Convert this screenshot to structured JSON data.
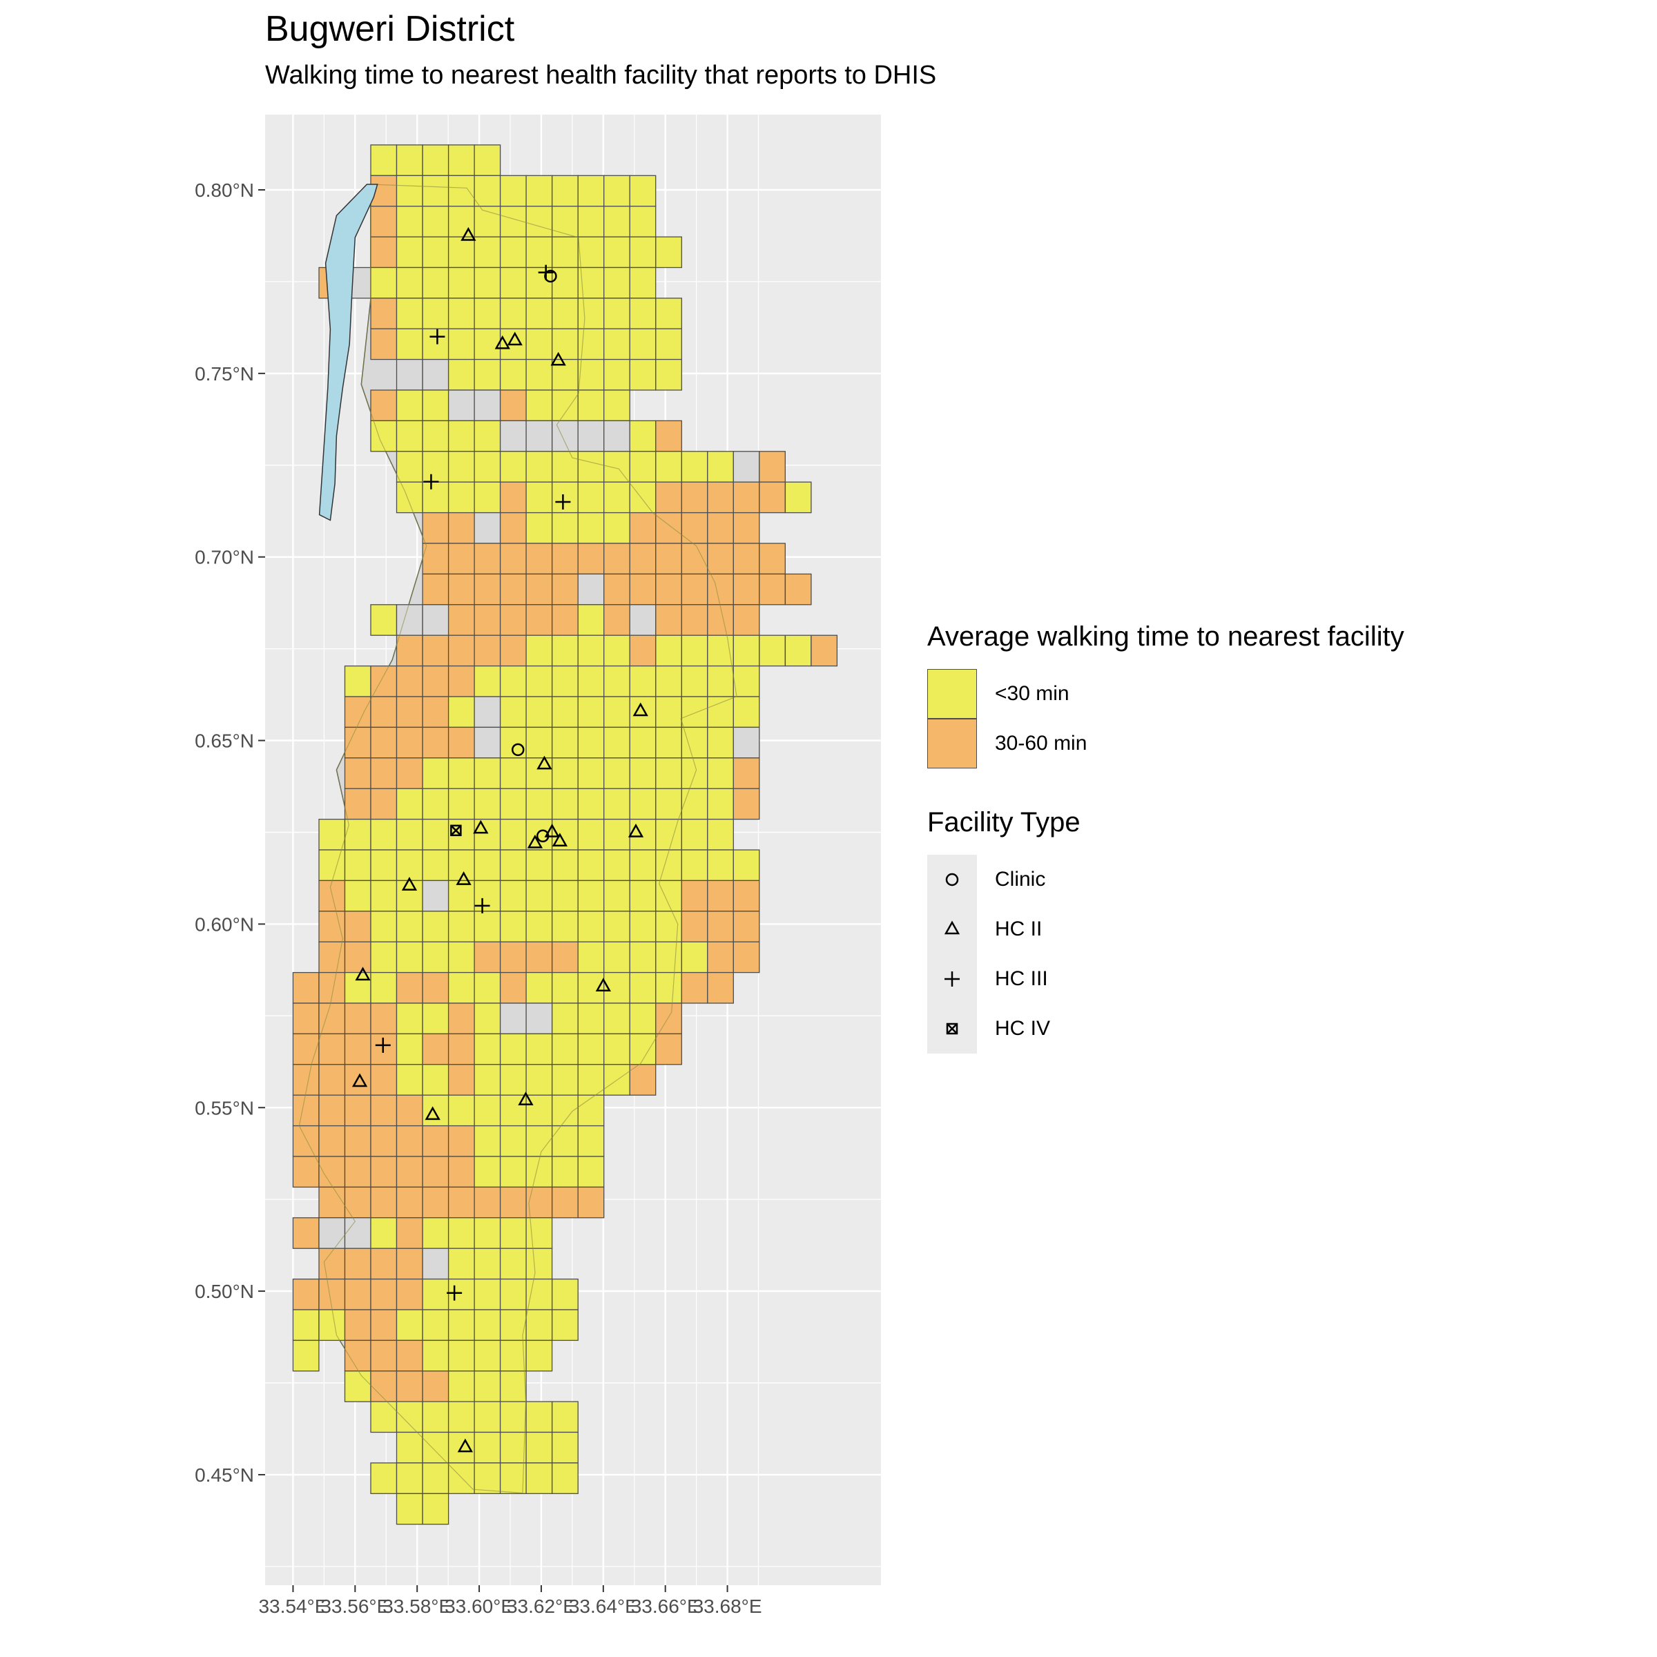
{
  "chart_data": {
    "type": "map",
    "title": "Bugweri District",
    "subtitle": "Walking time to nearest health facility that reports to DHIS",
    "xlim": [
      33.531,
      33.7295
    ],
    "ylim": [
      0.4199,
      0.8205
    ],
    "x_ticks": [
      {
        "value": 33.54,
        "label": "33.54°E"
      },
      {
        "value": 33.56,
        "label": "33.56°E"
      },
      {
        "value": 33.58,
        "label": "33.58°E"
      },
      {
        "value": 33.6,
        "label": "33.60°E"
      },
      {
        "value": 33.62,
        "label": "33.62°E"
      },
      {
        "value": 33.64,
        "label": "33.64°E"
      },
      {
        "value": 33.66,
        "label": "33.66°E"
      },
      {
        "value": 33.68,
        "label": "33.68°E"
      }
    ],
    "y_ticks": [
      {
        "value": 0.45,
        "label": "0.45°N"
      },
      {
        "value": 0.5,
        "label": "0.50°N"
      },
      {
        "value": 0.55,
        "label": "0.55°N"
      },
      {
        "value": 0.6,
        "label": "0.60°N"
      },
      {
        "value": 0.65,
        "label": "0.65°N"
      },
      {
        "value": 0.7,
        "label": "0.70°N"
      },
      {
        "value": 0.75,
        "label": "0.75°N"
      },
      {
        "value": 0.8,
        "label": "0.80°N"
      }
    ],
    "grid": true,
    "colors": {
      "panel": "#ebebeb",
      "grid": "#ffffff",
      "no_data": "#d9d9d9",
      "water": "#add8e6",
      "lt30": "#eded5a",
      "30to60": "#f5b86a",
      "cell_border": "#4d4d4d"
    },
    "grid_cells": {
      "origin_lon": 33.54,
      "origin_lat": 0.4365,
      "cell_size_deg": 0.00835,
      "value_codes": {
        "1": "<30 min",
        "2": "30-60 min",
        "0": "no data"
      },
      "rows_top_to_bottom": [
        {
          "col_start": 3,
          "codes": "11111"
        },
        {
          "col_start": 3,
          "codes": "21111111111"
        },
        {
          "col_start": 3,
          "codes": "21111111111"
        },
        {
          "col_start": 3,
          "codes": "211111111111"
        },
        {
          "col_start": 1,
          "codes": "2011111111111"
        },
        {
          "col_start": 3,
          "codes": "211111111111"
        },
        {
          "col_start": 3,
          "codes": "211111111111"
        },
        {
          "col_start": 4,
          "codes": "00111111111"
        },
        {
          "col_start": 3,
          "codes": "2110021111"
        },
        {
          "col_start": 3,
          "codes": "111110000012"
        },
        {
          "col_start": 4,
          "codes": "111111111111102"
        },
        {
          "col_start": 4,
          "codes": "1111211111222221"
        },
        {
          "col_start": 5,
          "codes": "2202111122222"
        },
        {
          "col_start": 5,
          "codes": "22222222222222"
        },
        {
          "col_start": 5,
          "codes": "222222022222222"
        },
        {
          "col_start": 3,
          "codes": "100222221202222"
        },
        {
          "col_start": 4,
          "codes": "22222111121111112"
        },
        {
          "col_start": 2,
          "codes": "1222211111111111"
        },
        {
          "col_start": 2,
          "codes": "2222101111111111"
        },
        {
          "col_start": 2,
          "codes": "2222201111111110"
        },
        {
          "col_start": 2,
          "codes": "2221111111111112"
        },
        {
          "col_start": 2,
          "codes": "2211111111111112"
        },
        {
          "col_start": 1,
          "codes": "1111111111111111"
        },
        {
          "col_start": 1,
          "codes": "11111111111111111"
        },
        {
          "col_start": 1,
          "codes": "21110111111111222"
        },
        {
          "col_start": 1,
          "codes": "22111111111111222"
        },
        {
          "col_start": 1,
          "codes": "22111122221111122"
        },
        {
          "col_start": 0,
          "codes": "22112211211111122"
        },
        {
          "col_start": 0,
          "codes": "222211210011112"
        },
        {
          "col_start": 0,
          "codes": "222212211111112"
        },
        {
          "col_start": 0,
          "codes": "22221121111112"
        },
        {
          "col_start": 0,
          "codes": "222221111111"
        },
        {
          "col_start": 0,
          "codes": "222222211111"
        },
        {
          "col_start": 0,
          "codes": "222222211111"
        },
        {
          "col_start": 1,
          "codes": "22222222222"
        },
        {
          "col_start": 0,
          "codes": "2001211111"
        },
        {
          "col_start": 1,
          "codes": "222201111"
        },
        {
          "col_start": 0,
          "codes": "22222111111"
        },
        {
          "col_start": 0,
          "codes": "11221111111"
        },
        {
          "col_start": 0,
          "codes": "1 22211111"
        },
        {
          "col_start": 2,
          "codes": "1222111"
        },
        {
          "col_start": 3,
          "codes": "11111111"
        },
        {
          "col_start": 4,
          "codes": "1111111"
        },
        {
          "col_start": 3,
          "codes": "11111111"
        },
        {
          "col_start": 4,
          "codes": "11"
        }
      ]
    },
    "boundary": [
      [
        33.565,
        0.8015
      ],
      [
        33.596,
        0.8005
      ],
      [
        33.601,
        0.7945
      ],
      [
        33.632,
        0.787
      ],
      [
        33.634,
        0.765
      ],
      [
        33.632,
        0.7445
      ],
      [
        33.625,
        0.736
      ],
      [
        33.63,
        0.727
      ],
      [
        33.645,
        0.724
      ],
      [
        33.656,
        0.712
      ],
      [
        33.67,
        0.703
      ],
      [
        33.676,
        0.693
      ],
      [
        33.68,
        0.678
      ],
      [
        33.683,
        0.662
      ],
      [
        33.665,
        0.656
      ],
      [
        33.67,
        0.642
      ],
      [
        33.664,
        0.628
      ],
      [
        33.658,
        0.611
      ],
      [
        33.664,
        0.6
      ],
      [
        33.662,
        0.576
      ],
      [
        33.652,
        0.562
      ],
      [
        33.63,
        0.549
      ],
      [
        33.62,
        0.538
      ],
      [
        33.616,
        0.524
      ],
      [
        33.618,
        0.505
      ],
      [
        33.614,
        0.488
      ],
      [
        33.615,
        0.47
      ],
      [
        33.614,
        0.445
      ],
      [
        33.598,
        0.446
      ],
      [
        33.576,
        0.465
      ],
      [
        33.562,
        0.477
      ],
      [
        33.554,
        0.488
      ],
      [
        33.55,
        0.508
      ],
      [
        33.56,
        0.519
      ],
      [
        33.55,
        0.532
      ],
      [
        33.542,
        0.545
      ],
      [
        33.546,
        0.562
      ],
      [
        33.552,
        0.578
      ],
      [
        33.556,
        0.596
      ],
      [
        33.552,
        0.61
      ],
      [
        33.558,
        0.627
      ],
      [
        33.554,
        0.642
      ],
      [
        33.563,
        0.658
      ],
      [
        33.572,
        0.672
      ],
      [
        33.578,
        0.689
      ],
      [
        33.583,
        0.703
      ],
      [
        33.576,
        0.718
      ],
      [
        33.568,
        0.732
      ],
      [
        33.562,
        0.747
      ],
      [
        33.565,
        0.77
      ]
    ],
    "lake": [
      [
        33.5638,
        0.8015
      ],
      [
        33.5672,
        0.8015
      ],
      [
        33.566,
        0.798
      ],
      [
        33.56,
        0.787
      ],
      [
        33.559,
        0.772
      ],
      [
        33.5582,
        0.758
      ],
      [
        33.556,
        0.746
      ],
      [
        33.554,
        0.733
      ],
      [
        33.5535,
        0.72
      ],
      [
        33.552,
        0.71
      ],
      [
        33.5485,
        0.7115
      ],
      [
        33.5498,
        0.728
      ],
      [
        33.5512,
        0.746
      ],
      [
        33.552,
        0.762
      ],
      [
        33.5505,
        0.78
      ],
      [
        33.554,
        0.793
      ]
    ],
    "legend": {
      "fill_title": "Average walking time to nearest facility",
      "fill_items": [
        {
          "label": "<30 min",
          "color": "#eded5a"
        },
        {
          "label": "30-60 min",
          "color": "#f5b86a"
        }
      ],
      "shape_title": "Facility Type",
      "shape_items": [
        {
          "label": "Clinic",
          "shape": "circle"
        },
        {
          "label": "HC II",
          "shape": "triangle"
        },
        {
          "label": "HC III",
          "shape": "plus"
        },
        {
          "label": "HC IV",
          "shape": "boxed-x"
        }
      ]
    },
    "facilities": [
      {
        "type": "HC II",
        "lon": 33.5965,
        "lat": 0.7875
      },
      {
        "type": "HC III",
        "lon": 33.6215,
        "lat": 0.7775
      },
      {
        "type": "Clinic",
        "lon": 33.623,
        "lat": 0.7765
      },
      {
        "type": "HC III",
        "lon": 33.5865,
        "lat": 0.76
      },
      {
        "type": "HC II",
        "lon": 33.6075,
        "lat": 0.758
      },
      {
        "type": "HC II",
        "lon": 33.6115,
        "lat": 0.759
      },
      {
        "type": "HC II",
        "lon": 33.6255,
        "lat": 0.7535
      },
      {
        "type": "HC III",
        "lon": 33.5845,
        "lat": 0.7205
      },
      {
        "type": "HC III",
        "lon": 33.627,
        "lat": 0.715
      },
      {
        "type": "HC II",
        "lon": 33.652,
        "lat": 0.658
      },
      {
        "type": "Clinic",
        "lon": 33.6125,
        "lat": 0.6475
      },
      {
        "type": "HC II",
        "lon": 33.621,
        "lat": 0.6435
      },
      {
        "type": "HC IV",
        "lon": 33.5925,
        "lat": 0.6255
      },
      {
        "type": "HC II",
        "lon": 33.6005,
        "lat": 0.626
      },
      {
        "type": "HC II",
        "lon": 33.618,
        "lat": 0.622
      },
      {
        "type": "Clinic",
        "lon": 33.6205,
        "lat": 0.624
      },
      {
        "type": "HC II",
        "lon": 33.6235,
        "lat": 0.625
      },
      {
        "type": "HC II",
        "lon": 33.626,
        "lat": 0.6225
      },
      {
        "type": "HC II",
        "lon": 33.6505,
        "lat": 0.625
      },
      {
        "type": "HC II",
        "lon": 33.595,
        "lat": 0.612
      },
      {
        "type": "HC II",
        "lon": 33.5775,
        "lat": 0.6105
      },
      {
        "type": "HC III",
        "lon": 33.601,
        "lat": 0.605
      },
      {
        "type": "HC II",
        "lon": 33.5625,
        "lat": 0.586
      },
      {
        "type": "HC II",
        "lon": 33.64,
        "lat": 0.583
      },
      {
        "type": "HC III",
        "lon": 33.569,
        "lat": 0.567
      },
      {
        "type": "HC II",
        "lon": 33.5615,
        "lat": 0.557
      },
      {
        "type": "HC II",
        "lon": 33.615,
        "lat": 0.552
      },
      {
        "type": "HC II",
        "lon": 33.585,
        "lat": 0.548
      },
      {
        "type": "HC III",
        "lon": 33.592,
        "lat": 0.4995
      },
      {
        "type": "HC II",
        "lon": 33.5955,
        "lat": 0.4575
      }
    ]
  }
}
